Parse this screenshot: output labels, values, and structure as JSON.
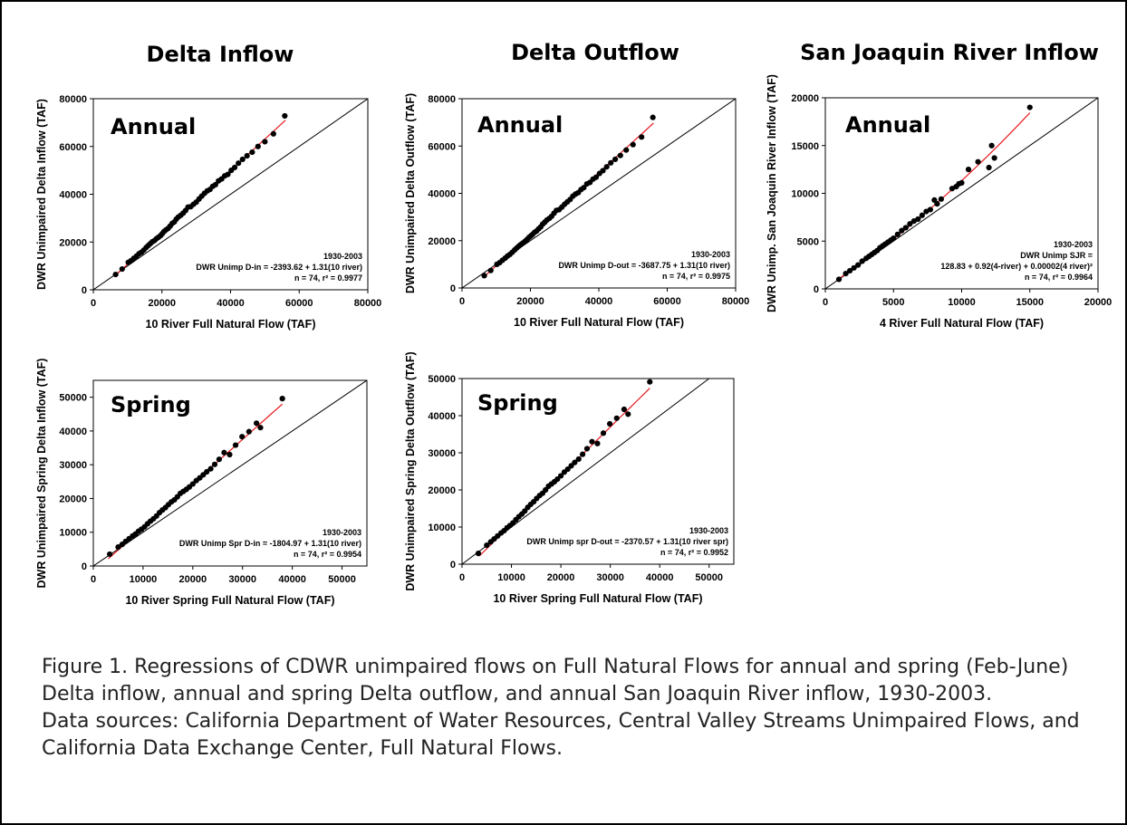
{
  "caption": {
    "line1": "Figure 1. Regressions of CDWR unimpaired flows on Full Natural Flows for annual and spring (Feb-June) Delta inflow, annual and spring Delta outflow, and annual San Joaquin River inflow, 1930-2003.",
    "line2": "Data sources: California Department of Water Resources, Central Valley Streams Unimpaired Flows, and California Data Exchange Center, Full Natural Flows."
  },
  "colors": {
    "fit_line": "#e8191e",
    "points": "#000000",
    "one_to_one": "#000000"
  },
  "chart_data": [
    {
      "type": "scatter",
      "title": "Delta Inflow",
      "season_label": "Annual",
      "xlabel": "10 River Full Natural Flow (TAF)",
      "ylabel": "DWR Unimpaired Delta Inflow (TAF)",
      "xlim": [
        0,
        80000
      ],
      "ylim": [
        0,
        80000
      ],
      "xticks": [
        0,
        20000,
        40000,
        60000,
        80000
      ],
      "yticks": [
        0,
        20000,
        40000,
        60000,
        80000
      ],
      "annotation": [
        "1930-2003",
        "DWR Unimp D-in = -2393.62 + 1.31(10 river)",
        "n = 74, r² = 0.9977"
      ],
      "fit": {
        "intercept": -2393.62,
        "slope": 1.31,
        "quad": 0,
        "x_range": [
          6500,
          56000
        ]
      },
      "x": [
        6500,
        8400,
        10200,
        11000,
        11800,
        12600,
        13300,
        14000,
        14700,
        15400,
        16000,
        16600,
        17200,
        17800,
        18400,
        19000,
        19600,
        20100,
        20600,
        21200,
        21800,
        22400,
        23000,
        23600,
        24200,
        24800,
        25500,
        26200,
        26900,
        27600,
        28400,
        29200,
        30000,
        30800,
        31600,
        32400,
        33200,
        34000,
        34800,
        35600,
        36500,
        37400,
        38300,
        39200,
        40200,
        41200,
        42300,
        43500,
        44800,
        46300,
        48000,
        50000,
        52500,
        55800
      ],
      "y": [
        6400,
        8700,
        11500,
        12200,
        13200,
        14100,
        15100,
        15700,
        16600,
        17700,
        18500,
        19300,
        20100,
        20600,
        21400,
        22000,
        22700,
        23500,
        24400,
        25100,
        25700,
        26700,
        27800,
        28400,
        29600,
        30500,
        31200,
        32100,
        33200,
        34600,
        34800,
        35800,
        36700,
        38000,
        39200,
        40400,
        41400,
        42000,
        43300,
        44000,
        45600,
        46400,
        47700,
        48300,
        50000,
        51200,
        53000,
        54600,
        56100,
        57600,
        60000,
        62000,
        65300,
        72800
      ]
    },
    {
      "type": "scatter",
      "title": "Delta Outflow",
      "season_label": "Annual",
      "xlabel": "10 River Full Natural Flow (TAF)",
      "ylabel": "DWR Unimpaired Delta Outflow (TAF)",
      "xlim": [
        0,
        80000
      ],
      "ylim": [
        0,
        80000
      ],
      "xticks": [
        0,
        20000,
        40000,
        60000,
        80000
      ],
      "yticks": [
        0,
        20000,
        40000,
        60000,
        80000
      ],
      "annotation": [
        "1930-2003",
        "DWR Unimp D-out = -3687.75 + 1.31(10 river)",
        "n = 74, r² = 0.9975"
      ],
      "fit": {
        "intercept": -3687.75,
        "slope": 1.31,
        "quad": 0,
        "x_range": [
          6500,
          56000
        ]
      },
      "x": [
        6500,
        8400,
        10200,
        11000,
        11800,
        12600,
        13300,
        14000,
        14700,
        15400,
        16000,
        16600,
        17200,
        17800,
        18400,
        19000,
        19600,
        20100,
        20600,
        21200,
        21800,
        22400,
        23000,
        23600,
        24200,
        24800,
        25500,
        26200,
        26900,
        27600,
        28400,
        29200,
        30000,
        30800,
        31600,
        32400,
        33200,
        34000,
        34800,
        35600,
        36500,
        37400,
        38300,
        39200,
        40200,
        41200,
        42300,
        43500,
        44800,
        46300,
        48000,
        50000,
        52500,
        55800
      ],
      "y": [
        5200,
        7400,
        10000,
        10700,
        11700,
        12600,
        13500,
        14200,
        15100,
        16100,
        16900,
        17700,
        18400,
        19000,
        19700,
        20500,
        21400,
        22000,
        22600,
        23500,
        24100,
        25000,
        25800,
        27000,
        27800,
        28700,
        29400,
        30300,
        31600,
        32800,
        33100,
        34200,
        35400,
        36400,
        37400,
        38800,
        39700,
        40300,
        41600,
        42400,
        44000,
        44600,
        46000,
        46800,
        48400,
        49600,
        51200,
        52900,
        54400,
        56000,
        58300,
        60600,
        63800,
        72100
      ]
    },
    {
      "type": "scatter",
      "title": "San Joaquin River Inflow",
      "season_label": "Annual",
      "xlabel": "4 River Full Natural Flow (TAF)",
      "ylabel": "DWR Unimp. San Joaquin River Inflow (TAF)",
      "xlim": [
        0,
        20000
      ],
      "ylim": [
        0,
        20000
      ],
      "xticks": [
        0,
        5000,
        10000,
        15000,
        20000
      ],
      "yticks": [
        0,
        5000,
        10000,
        15000,
        20000
      ],
      "annotation": [
        "1930-2003",
        "DWR Unimp SJR =",
        "128.83 + 0.92(4-river) + 0.00002(4 river)²",
        "n = 74, r² = 0.9964"
      ],
      "fit": {
        "intercept": 128.83,
        "slope": 0.92,
        "quad": 2e-05,
        "x_range": [
          800,
          15000
        ]
      },
      "x": [
        1000,
        1500,
        1800,
        2100,
        2400,
        2700,
        3000,
        3200,
        3400,
        3600,
        3800,
        4000,
        4200,
        4400,
        4600,
        4800,
        5000,
        5300,
        5600,
        5900,
        6200,
        6500,
        6800,
        7100,
        7400,
        7700,
        8000,
        8200,
        8500,
        9300,
        9600,
        9800,
        10000,
        10500,
        11200,
        12000,
        12200,
        12400,
        15000
      ],
      "y": [
        1000,
        1600,
        1900,
        2200,
        2500,
        2900,
        3200,
        3400,
        3600,
        3800,
        4000,
        4300,
        4500,
        4700,
        4900,
        5100,
        5300,
        5700,
        6100,
        6400,
        6800,
        7100,
        7300,
        7700,
        8100,
        8300,
        9300,
        8900,
        9400,
        10500,
        10700,
        11000,
        11100,
        12500,
        13300,
        12700,
        15000,
        13700,
        19000
      ]
    },
    {
      "type": "scatter",
      "title": "",
      "season_label": "Spring",
      "xlabel": "10 River Spring Full Natural Flow (TAF)",
      "ylabel": "DWR Unimpaired Spring Delta Inflow (TAF)",
      "xlim": [
        0,
        55000
      ],
      "ylim": [
        0,
        55000
      ],
      "xticks": [
        0,
        10000,
        20000,
        30000,
        40000,
        50000
      ],
      "yticks": [
        0,
        10000,
        20000,
        30000,
        40000,
        50000
      ],
      "annotation": [
        "1930-2003",
        "DWR Unimp Spr D-in = -1804.97 + 1.31(10 river)",
        "n = 74, r² = 0.9954"
      ],
      "fit": {
        "intercept": -1804.97,
        "slope": 1.31,
        "quad": 0,
        "x_range": [
          3000,
          38000
        ]
      },
      "x": [
        3300,
        5000,
        5800,
        6500,
        7200,
        7900,
        8500,
        9100,
        9700,
        10300,
        10900,
        11500,
        12100,
        12700,
        13300,
        13900,
        14500,
        15100,
        15700,
        16300,
        16900,
        17500,
        18100,
        18700,
        19300,
        20000,
        20700,
        21400,
        22100,
        22800,
        23600,
        24400,
        25300,
        26300,
        27400,
        28600,
        29900,
        31300,
        32800,
        33600,
        38000
      ],
      "y": [
        3500,
        5600,
        6400,
        7300,
        8100,
        8900,
        9500,
        10300,
        10900,
        11600,
        12500,
        13300,
        14000,
        14800,
        15800,
        16600,
        17300,
        18200,
        19000,
        19600,
        20500,
        21500,
        22100,
        22700,
        23400,
        24300,
        25300,
        26100,
        27000,
        27900,
        28800,
        30100,
        31600,
        33600,
        33000,
        35800,
        38300,
        39800,
        42300,
        41000,
        49600
      ]
    },
    {
      "type": "scatter",
      "title": "",
      "season_label": "Spring",
      "xlabel": "10 River Spring Full Natural Flow (TAF)",
      "ylabel": "DWR Unimpaired Spring Delta Outflow (TAF)",
      "xlim": [
        0,
        55000
      ],
      "ylim": [
        0,
        50000
      ],
      "xticks": [
        0,
        10000,
        20000,
        30000,
        40000,
        50000
      ],
      "yticks": [
        0,
        10000,
        20000,
        30000,
        40000,
        50000
      ],
      "annotation": [
        "1930-2003",
        "DWR Unimp spr D-out = -2370.57 + 1.31(10 river spr)",
        "n = 74, r² = 0.9952"
      ],
      "fit": {
        "intercept": -2370.57,
        "slope": 1.31,
        "quad": 0,
        "x_range": [
          3500,
          38000
        ]
      },
      "x": [
        3300,
        5000,
        5800,
        6500,
        7200,
        7900,
        8500,
        9100,
        9700,
        10300,
        10900,
        11500,
        12100,
        12700,
        13300,
        13900,
        14500,
        15100,
        15700,
        16300,
        16900,
        17500,
        18100,
        18700,
        19300,
        20000,
        20700,
        21400,
        22100,
        22800,
        23600,
        24400,
        25300,
        26300,
        27400,
        28600,
        29900,
        31300,
        32800,
        33600,
        38000
      ],
      "y": [
        2900,
        5100,
        6000,
        6800,
        7600,
        8400,
        9000,
        9800,
        10400,
        11100,
        12000,
        12800,
        13500,
        14300,
        15300,
        16100,
        16800,
        17700,
        18500,
        19100,
        20000,
        21000,
        21600,
        22200,
        22900,
        23800,
        24800,
        25600,
        26500,
        27400,
        28300,
        29600,
        31100,
        33000,
        32500,
        35300,
        37800,
        39300,
        41700,
        40400,
        49100
      ]
    }
  ]
}
